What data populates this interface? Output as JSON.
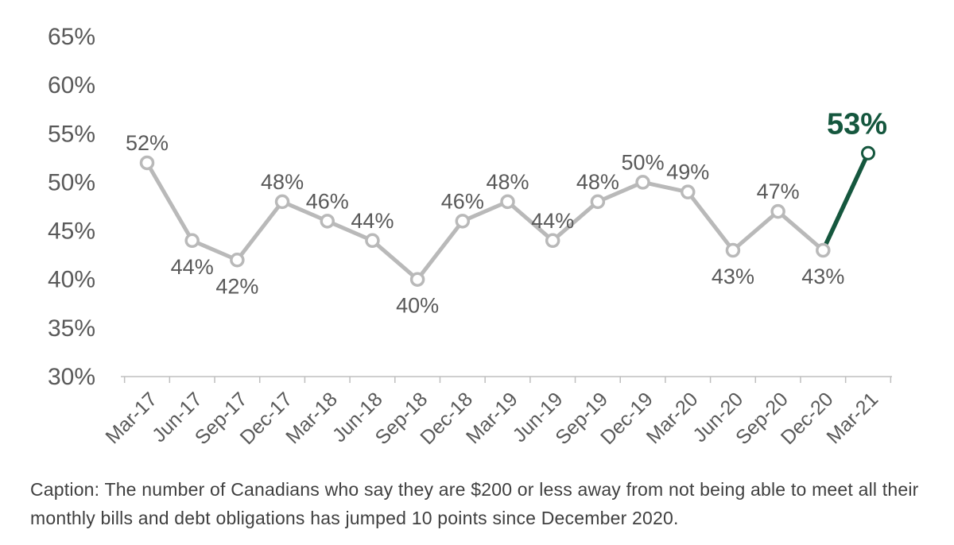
{
  "chart_data": {
    "type": "line",
    "title": "",
    "xlabel": "",
    "ylabel": "",
    "categories": [
      "Mar-17",
      "Jun-17",
      "Sep-17",
      "Dec-17",
      "Mar-18",
      "Jun-18",
      "Sep-18",
      "Dec-18",
      "Mar-19",
      "Jun-19",
      "Sep-19",
      "Dec-19",
      "Mar-20",
      "Jun-20",
      "Sep-20",
      "Dec-20",
      "Mar-21"
    ],
    "values": [
      52,
      44,
      42,
      48,
      46,
      44,
      40,
      46,
      48,
      44,
      48,
      50,
      49,
      43,
      47,
      43,
      53
    ],
    "data_labels": [
      "52%",
      "44%",
      "42%",
      "48%",
      "46%",
      "44%",
      "40%",
      "46%",
      "48%",
      "44%",
      "48%",
      "50%",
      "49%",
      "43%",
      "47%",
      "43%",
      "53%"
    ],
    "label_positions": [
      "above",
      "below",
      "below",
      "above",
      "above",
      "above",
      "below",
      "above",
      "above",
      "above",
      "above",
      "above",
      "above",
      "below",
      "above",
      "below",
      "above"
    ],
    "highlight_index": 16,
    "highlight_label": "53%",
    "ylim": [
      30,
      65
    ],
    "ytick_step": 5,
    "yticks": [
      "65%",
      "60%",
      "55%",
      "50%",
      "45%",
      "40%",
      "35%",
      "30%"
    ],
    "grid": false,
    "legend": "none",
    "colors": {
      "line": "#b9b9b9",
      "marker_fill": "#ffffff",
      "highlight": "#15573e",
      "data_label": "#595959",
      "tick_label": "#595959",
      "axis": "#bfbfbf"
    }
  },
  "caption": {
    "text": "Caption: The number of Canadians who say they are $200 or less away from not being able to meet all their monthly bills and debt obligations has jumped 10 points since December 2020."
  }
}
